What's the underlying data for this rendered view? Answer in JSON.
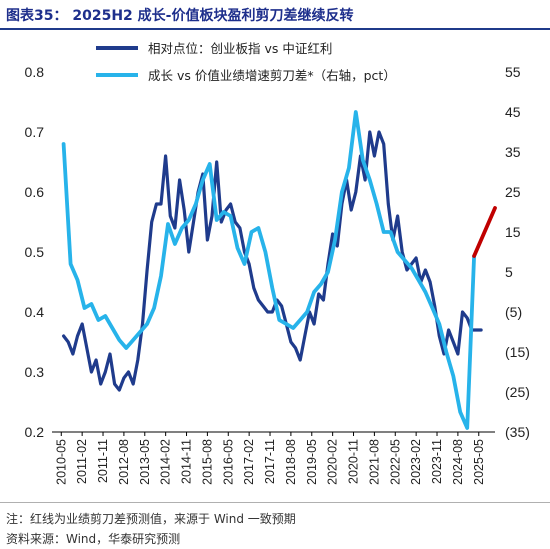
{
  "title": "图表35：  2025H2 成长-价值板块盈利剪刀差继续反转",
  "notes": {
    "note1": "注：红线为业绩剪刀差预测值，来源于 Wind 一致预期",
    "note2": "资料来源：Wind，华泰研究预测"
  },
  "colors": {
    "series1": "#1f3b8c",
    "series2": "#27b3ea",
    "forecast": "#c00000",
    "title": "#1e2f8c"
  },
  "chart_data": {
    "type": "line",
    "x_ticks": [
      "2010-05",
      "2011-02",
      "2011-11",
      "2012-08",
      "2013-05",
      "2014-02",
      "2014-11",
      "2015-08",
      "2016-05",
      "2017-02",
      "2017-11",
      "2018-08",
      "2019-05",
      "2020-02",
      "2020-11",
      "2021-08",
      "2022-05",
      "2023-02",
      "2023-11",
      "2024-08",
      "2025-05"
    ],
    "y_left": {
      "min": 0.2,
      "max": 0.8,
      "ticks": [
        "0.2",
        "0.3",
        "0.4",
        "0.5",
        "0.6",
        "0.7",
        "0.8"
      ]
    },
    "y_right": {
      "min": -35,
      "max": 55,
      "ticks": [
        "(35)",
        "(25)",
        "(15)",
        "(5)",
        "5",
        "15",
        "25",
        "35",
        "45",
        "55"
      ]
    },
    "legend": {
      "placement": "top-left"
    },
    "series": [
      {
        "name": "相对点位：创业板指 vs 中证红利",
        "axis": "left",
        "points": [
          [
            "2010-06",
            0.36
          ],
          [
            "2010-08",
            0.35
          ],
          [
            "2010-10",
            0.33
          ],
          [
            "2010-12",
            0.36
          ],
          [
            "2011-02",
            0.38
          ],
          [
            "2011-04",
            0.34
          ],
          [
            "2011-06",
            0.3
          ],
          [
            "2011-08",
            0.32
          ],
          [
            "2011-10",
            0.28
          ],
          [
            "2011-12",
            0.3
          ],
          [
            "2012-02",
            0.33
          ],
          [
            "2012-04",
            0.28
          ],
          [
            "2012-06",
            0.27
          ],
          [
            "2012-08",
            0.29
          ],
          [
            "2012-10",
            0.3
          ],
          [
            "2012-12",
            0.28
          ],
          [
            "2013-02",
            0.32
          ],
          [
            "2013-04",
            0.38
          ],
          [
            "2013-06",
            0.47
          ],
          [
            "2013-08",
            0.55
          ],
          [
            "2013-10",
            0.58
          ],
          [
            "2013-12",
            0.58
          ],
          [
            "2014-02",
            0.66
          ],
          [
            "2014-04",
            0.56
          ],
          [
            "2014-06",
            0.54
          ],
          [
            "2014-08",
            0.62
          ],
          [
            "2014-10",
            0.57
          ],
          [
            "2014-12",
            0.5
          ],
          [
            "2015-02",
            0.55
          ],
          [
            "2015-04",
            0.6
          ],
          [
            "2015-06",
            0.63
          ],
          [
            "2015-08",
            0.52
          ],
          [
            "2015-10",
            0.56
          ],
          [
            "2015-12",
            0.65
          ],
          [
            "2016-02",
            0.55
          ],
          [
            "2016-04",
            0.57
          ],
          [
            "2016-06",
            0.58
          ],
          [
            "2016-08",
            0.55
          ],
          [
            "2016-10",
            0.54
          ],
          [
            "2016-12",
            0.5
          ],
          [
            "2017-02",
            0.48
          ],
          [
            "2017-04",
            0.44
          ],
          [
            "2017-06",
            0.42
          ],
          [
            "2017-08",
            0.41
          ],
          [
            "2017-10",
            0.4
          ],
          [
            "2017-12",
            0.4
          ],
          [
            "2018-02",
            0.42
          ],
          [
            "2018-04",
            0.41
          ],
          [
            "2018-06",
            0.38
          ],
          [
            "2018-08",
            0.35
          ],
          [
            "2018-10",
            0.34
          ],
          [
            "2018-12",
            0.32
          ],
          [
            "2019-02",
            0.36
          ],
          [
            "2019-04",
            0.4
          ],
          [
            "2019-06",
            0.38
          ],
          [
            "2019-08",
            0.43
          ],
          [
            "2019-10",
            0.42
          ],
          [
            "2019-12",
            0.48
          ],
          [
            "2020-02",
            0.53
          ],
          [
            "2020-04",
            0.51
          ],
          [
            "2020-06",
            0.58
          ],
          [
            "2020-08",
            0.62
          ],
          [
            "2020-10",
            0.57
          ],
          [
            "2020-12",
            0.6
          ],
          [
            "2021-02",
            0.66
          ],
          [
            "2021-04",
            0.62
          ],
          [
            "2021-06",
            0.7
          ],
          [
            "2021-08",
            0.66
          ],
          [
            "2021-10",
            0.7
          ],
          [
            "2021-12",
            0.68
          ],
          [
            "2022-02",
            0.58
          ],
          [
            "2022-04",
            0.52
          ],
          [
            "2022-06",
            0.56
          ],
          [
            "2022-08",
            0.5
          ],
          [
            "2022-10",
            0.47
          ],
          [
            "2022-12",
            0.48
          ],
          [
            "2023-02",
            0.49
          ],
          [
            "2023-04",
            0.45
          ],
          [
            "2023-06",
            0.47
          ],
          [
            "2023-08",
            0.45
          ],
          [
            "2023-10",
            0.41
          ],
          [
            "2023-12",
            0.36
          ],
          [
            "2024-02",
            0.33
          ],
          [
            "2024-04",
            0.37
          ],
          [
            "2024-06",
            0.35
          ],
          [
            "2024-08",
            0.33
          ],
          [
            "2024-10",
            0.4
          ],
          [
            "2024-12",
            0.39
          ],
          [
            "2025-02",
            0.37
          ],
          [
            "2025-04",
            0.37
          ],
          [
            "2025-06",
            0.37
          ]
        ]
      },
      {
        "name": "成长 vs 价值业绩增速剪刀差*（右轴，pct）",
        "axis": "right",
        "points": [
          [
            "2010-06",
            37
          ],
          [
            "2010-09",
            7
          ],
          [
            "2010-12",
            3
          ],
          [
            "2011-03",
            -4
          ],
          [
            "2011-06",
            -3
          ],
          [
            "2011-09",
            -7
          ],
          [
            "2011-12",
            -6
          ],
          [
            "2012-03",
            -9
          ],
          [
            "2012-06",
            -12
          ],
          [
            "2012-09",
            -14
          ],
          [
            "2012-12",
            -12
          ],
          [
            "2013-03",
            -10
          ],
          [
            "2013-06",
            -8
          ],
          [
            "2013-09",
            -4
          ],
          [
            "2013-12",
            4
          ],
          [
            "2014-03",
            17
          ],
          [
            "2014-06",
            12
          ],
          [
            "2014-09",
            16
          ],
          [
            "2014-12",
            18
          ],
          [
            "2015-03",
            22
          ],
          [
            "2015-06",
            28
          ],
          [
            "2015-09",
            32
          ],
          [
            "2015-12",
            18
          ],
          [
            "2016-03",
            20
          ],
          [
            "2016-06",
            19
          ],
          [
            "2016-09",
            11
          ],
          [
            "2016-12",
            7
          ],
          [
            "2017-03",
            15
          ],
          [
            "2017-06",
            16
          ],
          [
            "2017-09",
            10
          ],
          [
            "2017-12",
            1
          ],
          [
            "2018-03",
            -7
          ],
          [
            "2018-06",
            -8
          ],
          [
            "2018-09",
            -9
          ],
          [
            "2018-12",
            -7
          ],
          [
            "2019-03",
            -5
          ],
          [
            "2019-06",
            0
          ],
          [
            "2019-09",
            2
          ],
          [
            "2019-12",
            5
          ],
          [
            "2020-03",
            13
          ],
          [
            "2020-06",
            25
          ],
          [
            "2020-09",
            31
          ],
          [
            "2020-12",
            45
          ],
          [
            "2021-03",
            33
          ],
          [
            "2021-06",
            28
          ],
          [
            "2021-09",
            22
          ],
          [
            "2021-12",
            15
          ],
          [
            "2022-03",
            15
          ],
          [
            "2022-06",
            10
          ],
          [
            "2022-09",
            8
          ],
          [
            "2022-12",
            6
          ],
          [
            "2023-03",
            3
          ],
          [
            "2023-06",
            0
          ],
          [
            "2023-09",
            -4
          ],
          [
            "2023-12",
            -8
          ],
          [
            "2024-03",
            -15
          ],
          [
            "2024-06",
            -21
          ],
          [
            "2024-09",
            -30
          ],
          [
            "2024-12",
            -34
          ],
          [
            "2025-03",
            9
          ]
        ]
      },
      {
        "name": "红线为业绩剪刀差预测值",
        "axis": "right",
        "points": [
          [
            "2025-03",
            9
          ],
          [
            "2025-12",
            21
          ]
        ]
      }
    ]
  }
}
